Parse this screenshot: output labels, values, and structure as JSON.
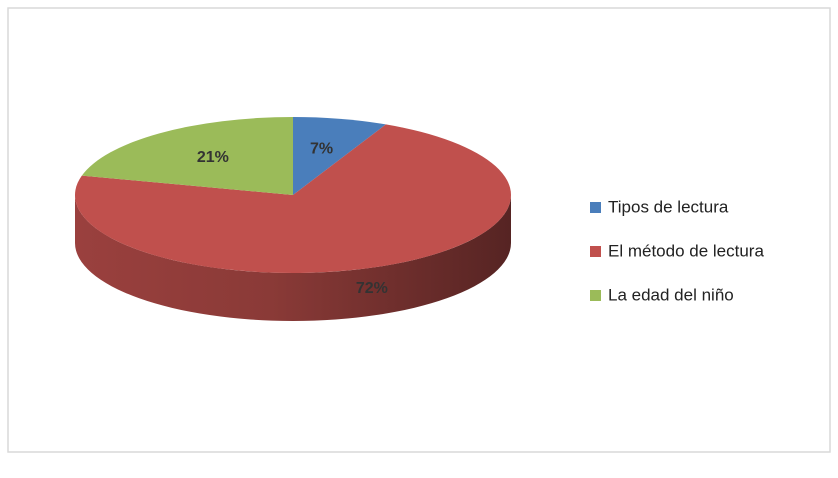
{
  "chart_data": {
    "type": "pie3d",
    "categories": [
      "Tipos de lectura",
      "El método de lectura",
      "La edad del niño"
    ],
    "values": [
      7,
      72,
      21
    ],
    "value_labels": [
      "7%",
      "72%",
      "21%"
    ],
    "colors": [
      "#4a7ebb",
      "#c0504d",
      "#9bbb59"
    ],
    "legend": "right"
  }
}
